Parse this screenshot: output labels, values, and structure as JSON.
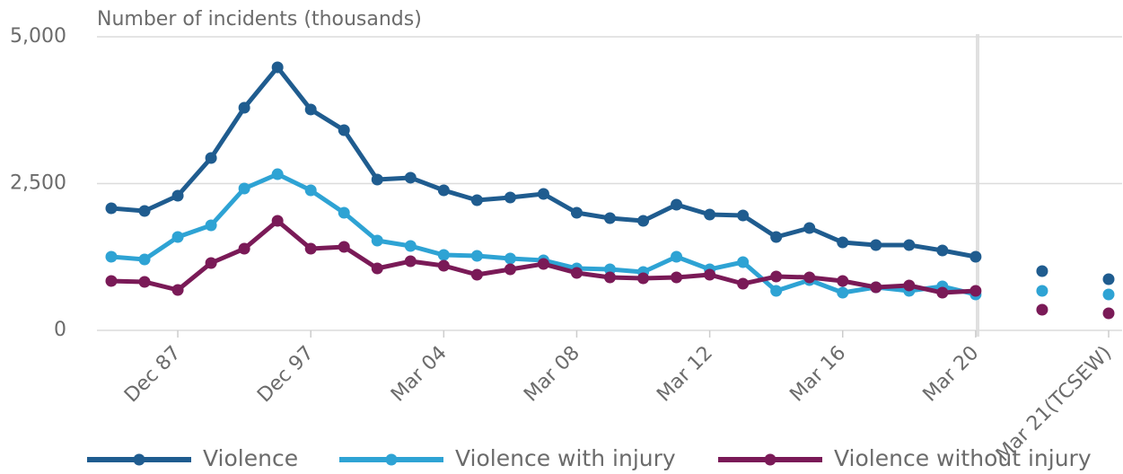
{
  "chart_data": {
    "type": "line",
    "y_label": "Number of incidents (thousands)",
    "categories": [
      null,
      null,
      "Dec 87",
      null,
      null,
      null,
      "Dec 97",
      null,
      null,
      null,
      "Mar 04",
      null,
      null,
      null,
      "Mar 08",
      null,
      null,
      null,
      "Mar 12",
      null,
      null,
      null,
      "Mar 16",
      null,
      null,
      null,
      "Mar 20",
      null,
      null,
      null,
      "Mar 21(TCSEW)"
    ],
    "series": [
      {
        "name": "Violence",
        "color": "#1f5c8f",
        "values": [
          2080,
          2034,
          2294,
          2936,
          3792,
          4480,
          3761,
          3410,
          2569,
          2600,
          2385,
          2217,
          2263,
          2324,
          2003,
          1911,
          1865,
          2141,
          1972,
          1957,
          1590,
          1743,
          1498,
          1453,
          1453,
          1361,
          1254,
          null,
          1009,
          null,
          872
        ]
      },
      {
        "name": "Violence with injury",
        "color": "#2ea3d4",
        "values": [
          1254,
          1208,
          1590,
          1789,
          2416,
          2660,
          2385,
          2003,
          1529,
          1437,
          1284,
          1269,
          1223,
          1193,
          1055,
          1040,
          994,
          1254,
          1040,
          1162,
          673,
          856,
          642,
          734,
          673,
          749,
          612,
          null,
          673,
          null,
          612
        ]
      },
      {
        "name": "Violence without injury",
        "color": "#7a1a57",
        "values": [
          841,
          826,
          688,
          1147,
          1391,
          1865,
          1391,
          1422,
          1055,
          1177,
          1101,
          948,
          1040,
          1131,
          979,
          902,
          887,
          902,
          948,
          795,
          917,
          902,
          841,
          734,
          765,
          642,
          673,
          null,
          352,
          null,
          291
        ]
      }
    ],
    "ylim": [
      0,
      5000
    ],
    "yticks": [
      0,
      {
        "value": 2500,
        "label": "2,500"
      },
      {
        "value": 5000,
        "label": "5,000"
      }
    ],
    "grid": true,
    "legend": "bottom"
  }
}
